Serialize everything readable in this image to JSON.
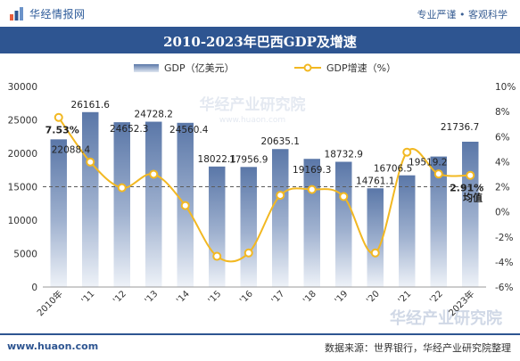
{
  "header": {
    "brand": "华经情报网",
    "slogan": "专业严谨 • 客观科学"
  },
  "footer": {
    "url": "www.huaon.com",
    "source": "数据来源：世界银行，华经产业研究院整理"
  },
  "watermark": {
    "text": "华经产业研究院",
    "url": "www.huaon.com"
  },
  "colors": {
    "title_band": "#2e5591",
    "bar": "#5a77a8",
    "line": "#f2b822",
    "avg_line": "#5b5b5b"
  },
  "chart_data": {
    "type": "bar",
    "title": "2010-2023年巴西GDP及增速",
    "categories": [
      "2010年",
      "'11",
      "'12",
      "'13",
      "'14",
      "'15",
      "'16",
      "'17",
      "'18",
      "'19",
      "'20",
      "'21",
      "'22",
      "2023年"
    ],
    "series": [
      {
        "name": "GDP（亿美元）",
        "type": "bar",
        "axis": "left",
        "values": [
          22088.4,
          26161.6,
          24652.3,
          24728.2,
          24560.4,
          18022.1,
          17956.9,
          20635.1,
          19169.3,
          18732.9,
          14761.1,
          16706.5,
          19519.2,
          21736.7
        ],
        "labels": [
          "22088.4",
          "26161.6",
          "24652.3",
          "24728.2",
          "24560.4",
          "18022.1",
          "17956.9",
          "20635.1",
          "19169.3",
          "18732.9",
          "14761.1",
          "16706.5",
          "19519.2",
          "21736.7"
        ]
      },
      {
        "name": "GDP增速（%）",
        "type": "line",
        "axis": "right",
        "values": [
          7.53,
          3.97,
          1.92,
          3.0,
          0.5,
          -3.55,
          -3.28,
          1.32,
          1.78,
          1.22,
          -3.28,
          4.76,
          3.02,
          2.91
        ],
        "labels": {
          "0": "7.53%",
          "13": "2.91%"
        }
      }
    ],
    "left_axis": {
      "min": 0,
      "max": 30000,
      "ticks": [
        "0",
        "5000",
        "10000",
        "15000",
        "20000",
        "25000",
        "30000"
      ]
    },
    "right_axis": {
      "min": -6,
      "max": 10,
      "ticks": [
        "-6%",
        "-4%",
        "-2%",
        "0%",
        "2%",
        "4%",
        "6%",
        "8%",
        "10%"
      ]
    },
    "average": {
      "label": "均值",
      "value": 2.0
    },
    "grid": false,
    "legend_position": "top-center"
  }
}
